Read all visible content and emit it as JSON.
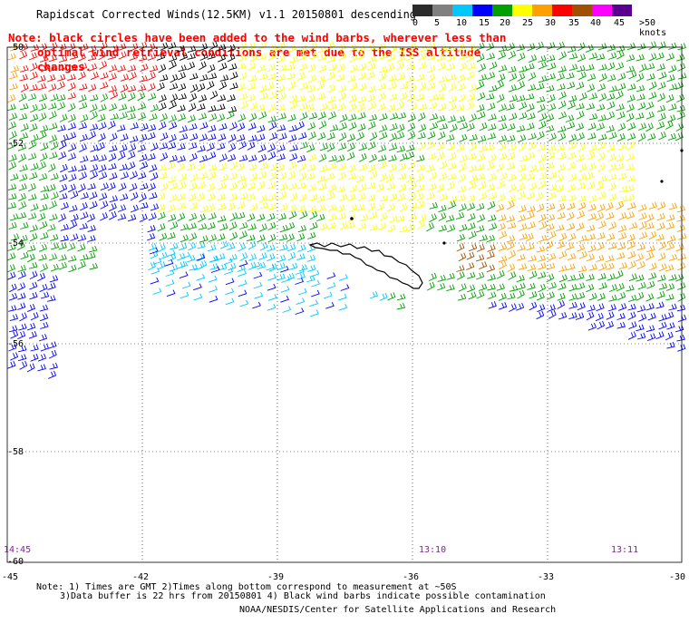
{
  "title": "Rapidscat Corrected Winds(12.5KM) v1.1 20150801 descending",
  "note_line1": "Note: black circles have been added to the wind barbs, wherever less than",
  "note_line2": "optimal wind retrieval conditions are met due to the ISS altitude changes.",
  "legend": {
    "labels": [
      "0",
      "5",
      "10",
      "15",
      "20",
      "25",
      "30",
      "35",
      "40",
      "45",
      ">50 knots"
    ],
    "colors": [
      "#2b2b2b",
      "#808080",
      "#00c8ff",
      "#0000ff",
      "#00a000",
      "#ffff00",
      "#ffa000",
      "#ff0000",
      "#a05000",
      "#ff00ff",
      "#5a0090"
    ]
  },
  "lat_labels": [
    "-50",
    "-52",
    "-54",
    "-56",
    "-58",
    "-60"
  ],
  "lon_labels": [
    "-45",
    "-42",
    "-39",
    "-36",
    "-33",
    "-30"
  ],
  "time_labels": [
    "14:45",
    "13:10",
    "13:11"
  ],
  "footer_line1": "Note: 1) Times are GMT 2)Times along bottom correspond to measurement at ~50S",
  "footer_line2": "3)Data buffer is 22 hrs from 20150801 4) Black wind barbs indicate possible contamination",
  "footer_line3": "NOAA/NESDIS/Center for Satellite Applications and Research",
  "map_colors": {
    "gray": "#808080",
    "cyan": "#00c8ff",
    "blue": "#0000ff",
    "green": "#00a000",
    "yellow": "#ffff00",
    "orange": "#ffa000",
    "red": "#ff0000",
    "brown": "#a05000",
    "black": "#000000"
  }
}
